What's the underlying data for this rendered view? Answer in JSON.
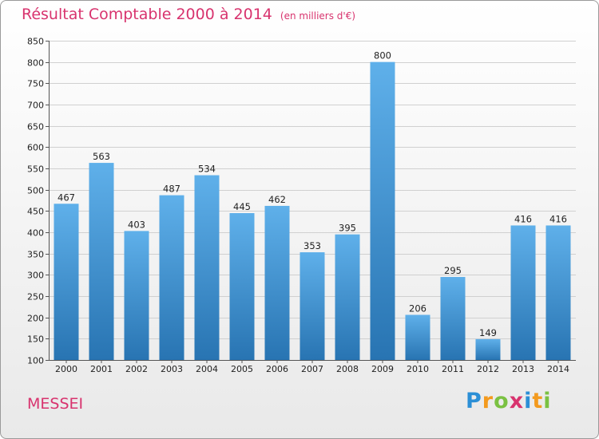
{
  "header": {
    "title": "Résultat Comptable 2000 à 2014",
    "unit": "(en milliers d'€)"
  },
  "footer": {
    "commune": "MESSEI"
  },
  "brand": {
    "letters": [
      "P",
      "r",
      "o",
      "x",
      "i",
      "t",
      "i"
    ],
    "colors": [
      "#2b8fd6",
      "#f39a1e",
      "#7ac142",
      "#d8336e",
      "#2b8fd6",
      "#f39a1e",
      "#7ac142"
    ]
  },
  "colors": {
    "title": "#d8336e",
    "bar_top": "#5fb0ea",
    "bar_bottom": "#2874b2",
    "grid": "#d0d0d0"
  },
  "chart_data": {
    "type": "bar",
    "title": "Résultat Comptable 2000 à 2014",
    "subtitle": "(en milliers d'€)",
    "xlabel": "",
    "ylabel": "",
    "categories": [
      "2000",
      "2001",
      "2002",
      "2003",
      "2004",
      "2005",
      "2006",
      "2007",
      "2008",
      "2009",
      "2010",
      "2011",
      "2012",
      "2013",
      "2014"
    ],
    "values": [
      467,
      563,
      403,
      487,
      534,
      445,
      462,
      353,
      395,
      800,
      206,
      295,
      149,
      416,
      416
    ],
    "ylim": [
      100,
      850
    ],
    "yticks": [
      100,
      150,
      200,
      250,
      300,
      350,
      400,
      450,
      500,
      550,
      600,
      650,
      700,
      750,
      800,
      850
    ],
    "grid": true,
    "legend": "none"
  }
}
